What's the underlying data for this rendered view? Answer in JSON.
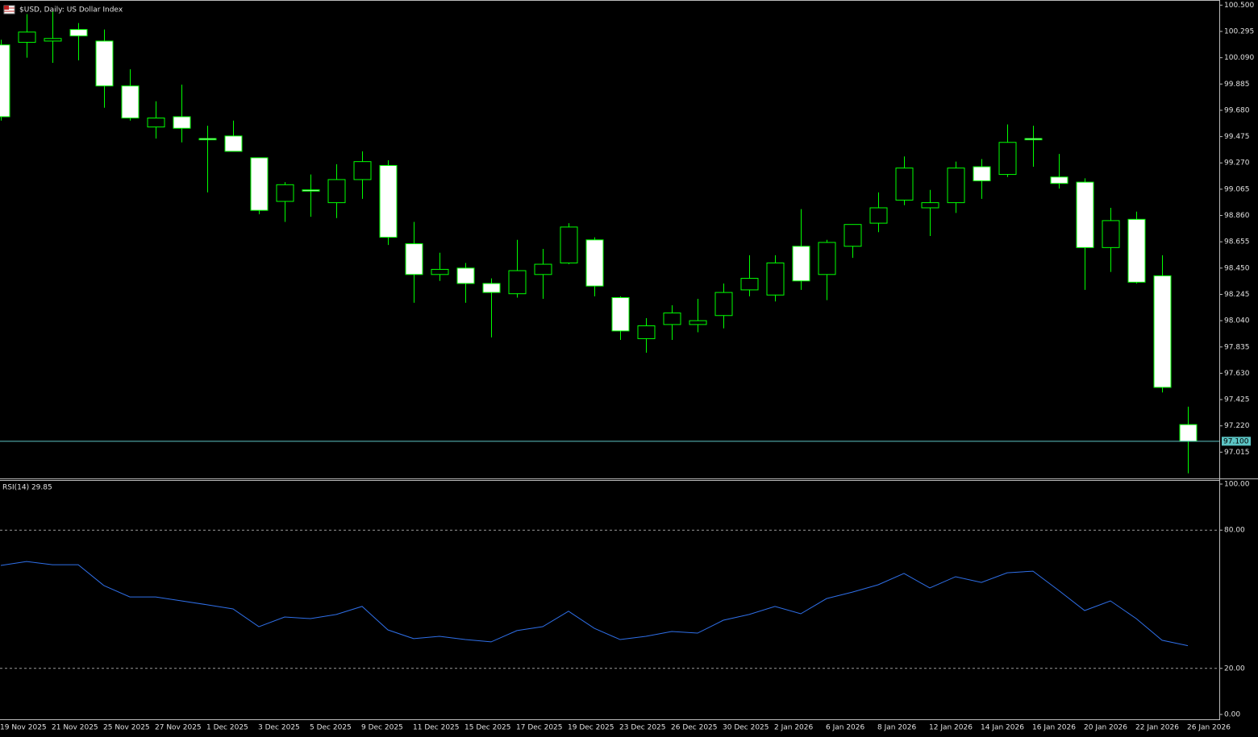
{
  "chart_data": [
    {
      "type": "candlestick",
      "title": "$USD, Daily:  US Dollar Index",
      "categories": [
        "19 Nov 2025",
        null,
        "21 Nov 2025",
        null,
        "25 Nov 2025",
        null,
        "27 Nov 2025",
        null,
        "1 Dec 2025",
        null,
        "3 Dec 2025",
        null,
        "5 Dec 2025",
        null,
        "9 Dec 2025",
        null,
        "11 Dec 2025",
        null,
        "15 Dec 2025",
        null,
        "17 Dec 2025",
        null,
        "19 Dec 2025",
        null,
        "23 Dec 2025",
        null,
        "26 Dec 2025",
        null,
        "30 Dec 2025",
        null,
        "2 Jan 2026",
        null,
        "6 Jan 2026",
        null,
        "8 Jan 2026",
        null,
        "12 Jan 2026",
        null,
        "14 Jan 2026",
        null,
        "16 Jan 2026",
        null,
        "20 Jan 2026",
        null,
        "22 Jan 2026",
        null,
        "26 Jan 2026"
      ],
      "open": [
        100.19,
        100.21,
        100.22,
        100.31,
        100.22,
        99.87,
        99.55,
        99.63,
        99.46,
        99.48,
        99.31,
        98.97,
        99.06,
        98.96,
        99.14,
        99.25,
        98.64,
        98.4,
        98.45,
        98.33,
        98.25,
        98.4,
        98.49,
        98.67,
        98.22,
        97.9,
        98.01,
        98.01,
        98.08,
        98.28,
        98.24,
        98.62,
        98.4,
        98.62,
        98.8,
        98.98,
        98.92,
        98.96,
        99.24,
        99.18,
        99.46,
        99.16,
        99.12,
        98.61,
        98.83,
        98.39,
        97.23
      ],
      "high": [
        100.23,
        100.43,
        100.45,
        100.36,
        100.31,
        100.0,
        99.75,
        99.88,
        99.56,
        99.6,
        99.31,
        99.12,
        99.18,
        99.26,
        99.36,
        99.29,
        98.81,
        98.57,
        98.49,
        98.37,
        98.67,
        98.6,
        98.8,
        98.69,
        98.23,
        98.06,
        98.16,
        98.21,
        98.33,
        98.55,
        98.55,
        98.91,
        98.67,
        98.79,
        99.04,
        99.32,
        99.06,
        99.28,
        99.3,
        99.57,
        99.56,
        99.34,
        99.15,
        98.92,
        98.89,
        98.55,
        97.37
      ],
      "low": [
        99.6,
        100.09,
        100.05,
        100.07,
        99.7,
        99.6,
        99.46,
        99.43,
        99.04,
        99.36,
        98.87,
        98.81,
        98.85,
        98.84,
        98.99,
        98.63,
        98.18,
        98.35,
        98.18,
        97.91,
        98.22,
        98.21,
        98.48,
        98.23,
        97.89,
        97.79,
        97.89,
        97.95,
        97.98,
        98.23,
        98.19,
        98.28,
        98.2,
        98.53,
        98.73,
        98.94,
        98.7,
        98.88,
        98.99,
        99.16,
        99.24,
        99.07,
        98.28,
        98.42,
        98.33,
        97.48,
        96.85
      ],
      "close": [
        99.63,
        100.29,
        100.24,
        100.26,
        99.87,
        99.62,
        99.62,
        99.54,
        99.45,
        99.36,
        98.9,
        99.1,
        99.05,
        99.14,
        99.28,
        98.69,
        98.4,
        98.44,
        98.33,
        98.26,
        98.43,
        98.48,
        98.77,
        98.31,
        97.96,
        98.0,
        98.1,
        98.04,
        98.26,
        98.37,
        98.49,
        98.35,
        98.65,
        98.79,
        98.92,
        99.23,
        98.96,
        99.23,
        99.13,
        99.43,
        99.45,
        99.11,
        98.61,
        98.82,
        98.34,
        97.52,
        97.1
      ],
      "up_color": "#000000",
      "down_color": "#ffffff",
      "outline_color": "#00ff00",
      "ylim": [
        96.81,
        100.54
      ],
      "yticks": [
        {
          "value": 100.5,
          "label": "100.500"
        },
        100.295,
        {
          "value": 100.09,
          "label": "100.090"
        },
        99.885,
        {
          "value": 99.68,
          "label": "99.680"
        },
        99.475,
        {
          "value": 99.27,
          "label": "99.270"
        },
        99.065,
        {
          "value": 98.86,
          "label": "98.860"
        },
        98.655,
        {
          "value": 98.45,
          "label": "98.450"
        },
        98.245,
        {
          "value": 98.04,
          "label": "98.040"
        },
        97.835,
        {
          "value": 97.63,
          "label": "97.630"
        },
        97.425,
        {
          "value": 97.22,
          "label": "97.220"
        },
        97.015
      ],
      "last_price": {
        "value": 97.1,
        "label": "97.100"
      },
      "last_price_color": "#5cc4c4"
    },
    {
      "type": "line",
      "title": "RSI(14) 29.85",
      "values": [
        64.7,
        66.4,
        65.0,
        65.0,
        55.9,
        51.0,
        51.0,
        49.3,
        47.6,
        45.8,
        38.1,
        42.3,
        41.6,
        43.4,
        46.9,
        36.7,
        32.9,
        33.9,
        32.5,
        31.5,
        36.4,
        38.1,
        44.8,
        37.4,
        32.5,
        33.9,
        36.0,
        35.3,
        40.9,
        43.4,
        46.9,
        43.7,
        50.3,
        53.1,
        56.3,
        61.2,
        54.9,
        59.8,
        57.3,
        61.5,
        62.2,
        53.8,
        45.1,
        49.3,
        41.6,
        32.2,
        29.85
      ],
      "color": "#2f6fe8",
      "ylim": [
        -2.1,
        101.4
      ],
      "yticks": [
        {
          "value": 100,
          "label": "100.00"
        },
        {
          "value": 80,
          "label": "80.00"
        },
        {
          "value": 20,
          "label": "20.00"
        },
        {
          "value": 0,
          "label": "0.00"
        }
      ],
      "levels": [
        80,
        20
      ]
    }
  ]
}
